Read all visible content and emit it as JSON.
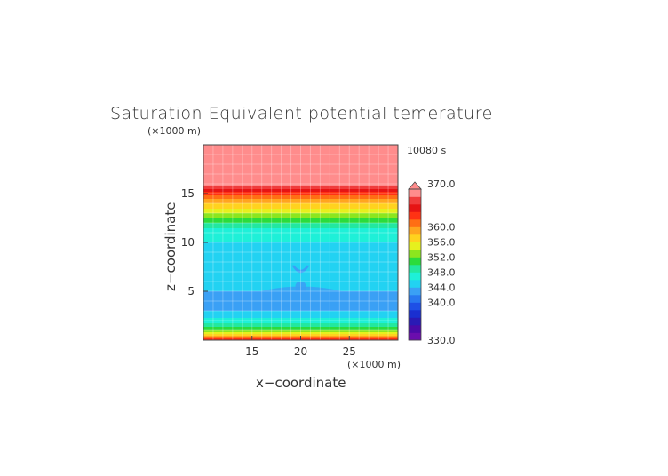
{
  "chart_data": {
    "type": "heatmap",
    "title": "Saturation Equivalent potential temerature",
    "time_label": "10080 s",
    "xlabel": "x−coordinate",
    "ylabel": "z−coordinate",
    "x_unit": "(×1000 m)",
    "y_unit": "(×1000 m)",
    "xlim": [
      10,
      30
    ],
    "ylim": [
      0,
      20
    ],
    "xticks": [
      15,
      20,
      25
    ],
    "yticks": [
      5,
      10,
      15
    ],
    "grid": true,
    "colorbar": {
      "levels": [
        330,
        332,
        334,
        336,
        338,
        340,
        342,
        344,
        346,
        348,
        350,
        352,
        354,
        356,
        358,
        360,
        362,
        364,
        366,
        368,
        370
      ],
      "tick_labels": [
        "330.0",
        "340.0",
        "344.0",
        "348.0",
        "352.0",
        "356.0",
        "360.0",
        "370.0"
      ],
      "tick_values": [
        330,
        340,
        344,
        348,
        352,
        356,
        360,
        370
      ],
      "over_color": "#ff8c8c",
      "colors": [
        "#6a0dad",
        "#4b0aa8",
        "#2a1ab5",
        "#1a2fd0",
        "#1e50e6",
        "#2878f0",
        "#3aa0f5",
        "#22d2f2",
        "#1ef0d8",
        "#22e8a0",
        "#2bdc3c",
        "#8ce61e",
        "#e6f01e",
        "#ffd21e",
        "#ffa51e",
        "#ff6e14",
        "#ff3214",
        "#e61414",
        "#f03c3c",
        "#ff8c8c"
      ]
    },
    "profile": {
      "z": [
        0,
        0.3,
        0.6,
        1.0,
        1.5,
        2.0,
        2.5,
        3.0,
        4.0,
        5.0,
        6.0,
        8.0,
        10.0,
        11.0,
        11.5,
        12.0,
        12.5,
        13.0,
        13.5,
        14.0,
        14.5,
        15.0,
        15.5,
        16.0,
        20.0
      ],
      "theta": [
        363,
        361,
        356,
        352,
        349,
        347,
        345,
        344,
        343,
        344,
        345,
        345,
        346,
        347,
        348,
        350,
        352,
        354,
        356,
        358,
        360,
        363,
        366,
        371,
        371
      ]
    },
    "features": [
      {
        "type": "blue-wing",
        "x_range": [
          12.8,
          27.3
        ],
        "z_center": 3.8,
        "value": 342
      },
      {
        "type": "cap",
        "x_center": 20,
        "z_center": 7.2,
        "value": 342
      },
      {
        "type": "column",
        "x_center": 20,
        "z_range": [
          3.9,
          6.0
        ],
        "value": 342
      },
      {
        "type": "green-lens",
        "x_range": [
          17,
          23.5
        ],
        "z_center": 10.5,
        "value": 347
      }
    ]
  }
}
